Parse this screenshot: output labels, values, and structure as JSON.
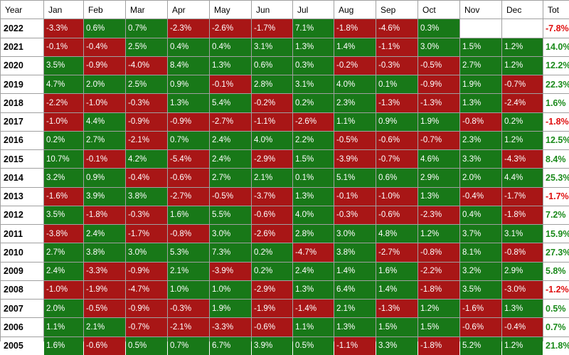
{
  "colors": {
    "positive_cell": "#187818",
    "negative_cell": "#a81616",
    "total_up": "#1a8a1a",
    "total_down": "#e01010"
  },
  "headers": [
    "Year",
    "Jan",
    "Feb",
    "Mar",
    "Apr",
    "May",
    "Jun",
    "Jul",
    "Aug",
    "Sep",
    "Oct",
    "Nov",
    "Dec",
    "Tot"
  ],
  "rows": [
    {
      "year": "2022",
      "months": [
        "-3.3%",
        "0.6%",
        "0.7%",
        "-2.3%",
        "-2.6%",
        "-1.7%",
        "7.1%",
        "-1.8%",
        "-4.6%",
        "0.3%",
        "",
        ""
      ],
      "total": "-7.8%"
    },
    {
      "year": "2021",
      "months": [
        "-0.1%",
        "-0.4%",
        "2.5%",
        "0.4%",
        "0.4%",
        "3.1%",
        "1.3%",
        "1.4%",
        "-1.1%",
        "3.0%",
        "1.5%",
        "1.2%"
      ],
      "total": "14.0%"
    },
    {
      "year": "2020",
      "months": [
        "3.5%",
        "-0.9%",
        "-4.0%",
        "8.4%",
        "1.3%",
        "0.6%",
        "0.3%",
        "-0.2%",
        "-0.3%",
        "-0.5%",
        "2.7%",
        "1.2%"
      ],
      "total": "12.2%"
    },
    {
      "year": "2019",
      "months": [
        "4.7%",
        "2.0%",
        "2.5%",
        "0.9%",
        "-0.1%",
        "2.8%",
        "3.1%",
        "4.0%",
        "0.1%",
        "-0.9%",
        "1.9%",
        "-0.7%"
      ],
      "total": "22.3%"
    },
    {
      "year": "2018",
      "months": [
        "-2.2%",
        "-1.0%",
        "-0.3%",
        "1.3%",
        "5.4%",
        "-0.2%",
        "0.2%",
        "2.3%",
        "-1.3%",
        "-1.3%",
        "1.3%",
        "-2.4%"
      ],
      "total": "1.6%"
    },
    {
      "year": "2017",
      "months": [
        "-1.0%",
        "4.4%",
        "-0.9%",
        "-0.9%",
        "-2.7%",
        "-1.1%",
        "-2.6%",
        "1.1%",
        "0.9%",
        "1.9%",
        "-0.8%",
        "0.2%"
      ],
      "total": "-1.8%"
    },
    {
      "year": "2016",
      "months": [
        "0.2%",
        "2.7%",
        "-2.1%",
        "0.7%",
        "2.4%",
        "4.0%",
        "2.2%",
        "-0.5%",
        "-0.6%",
        "-0.7%",
        "2.3%",
        "1.2%"
      ],
      "total": "12.5%"
    },
    {
      "year": "2015",
      "months": [
        "10.7%",
        "-0.1%",
        "4.2%",
        "-5.4%",
        "2.4%",
        "-2.9%",
        "1.5%",
        "-3.9%",
        "-0.7%",
        "4.6%",
        "3.3%",
        "-4.3%"
      ],
      "total": "8.4%"
    },
    {
      "year": "2014",
      "months": [
        "3.2%",
        "0.9%",
        "-0.4%",
        "-0.6%",
        "2.7%",
        "2.1%",
        "0.1%",
        "5.1%",
        "0.6%",
        "2.9%",
        "2.0%",
        "4.4%"
      ],
      "total": "25.3%"
    },
    {
      "year": "2013",
      "months": [
        "-1.6%",
        "3.9%",
        "3.8%",
        "-2.7%",
        "-0.5%",
        "-3.7%",
        "1.3%",
        "-0.1%",
        "-1.0%",
        "1.3%",
        "-0.4%",
        "-1.7%"
      ],
      "total": "-1.7%"
    },
    {
      "year": "2012",
      "months": [
        "3.5%",
        "-1.8%",
        "-0.3%",
        "1.6%",
        "5.5%",
        "-0.6%",
        "4.0%",
        "-0.3%",
        "-0.6%",
        "-2.3%",
        "0.4%",
        "-1.8%"
      ],
      "total": "7.2%"
    },
    {
      "year": "2011",
      "months": [
        "-3.8%",
        "2.4%",
        "-1.7%",
        "-0.8%",
        "3.0%",
        "-2.6%",
        "2.8%",
        "3.0%",
        "4.8%",
        "1.2%",
        "3.7%",
        "3.1%"
      ],
      "total": "15.9%"
    },
    {
      "year": "2010",
      "months": [
        "2.7%",
        "3.8%",
        "3.0%",
        "5.3%",
        "7.3%",
        "0.2%",
        "-4.7%",
        "3.8%",
        "-2.7%",
        "-0.8%",
        "8.1%",
        "-0.8%"
      ],
      "total": "27.3%"
    },
    {
      "year": "2009",
      "months": [
        "2.4%",
        "-3.3%",
        "-0.9%",
        "2.1%",
        "-3.9%",
        "0.2%",
        "2.4%",
        "1.4%",
        "1.6%",
        "-2.2%",
        "3.2%",
        "2.9%"
      ],
      "total": "5.8%"
    },
    {
      "year": "2008",
      "months": [
        "-1.0%",
        "-1.9%",
        "-4.7%",
        "1.0%",
        "1.0%",
        "-2.9%",
        "1.3%",
        "6.4%",
        "1.4%",
        "-1.8%",
        "3.5%",
        "-3.0%"
      ],
      "total": "-1.2%"
    },
    {
      "year": "2007",
      "months": [
        "2.0%",
        "-0.5%",
        "-0.9%",
        "-0.3%",
        "1.9%",
        "-1.9%",
        "-1.4%",
        "2.1%",
        "-1.3%",
        "1.2%",
        "-1.6%",
        "1.3%"
      ],
      "total": "0.5%"
    },
    {
      "year": "2006",
      "months": [
        "1.1%",
        "2.1%",
        "-0.7%",
        "-2.1%",
        "-3.3%",
        "-0.6%",
        "1.1%",
        "1.3%",
        "1.5%",
        "1.5%",
        "-0.6%",
        "-0.4%"
      ],
      "total": "0.7%"
    },
    {
      "year": "2005",
      "months": [
        "1.6%",
        "-0.6%",
        "0.5%",
        "0.7%",
        "6.7%",
        "3.9%",
        "0.5%",
        "-1.1%",
        "3.3%",
        "-1.8%",
        "5.2%",
        "1.2%"
      ],
      "total": "21.8%"
    }
  ]
}
